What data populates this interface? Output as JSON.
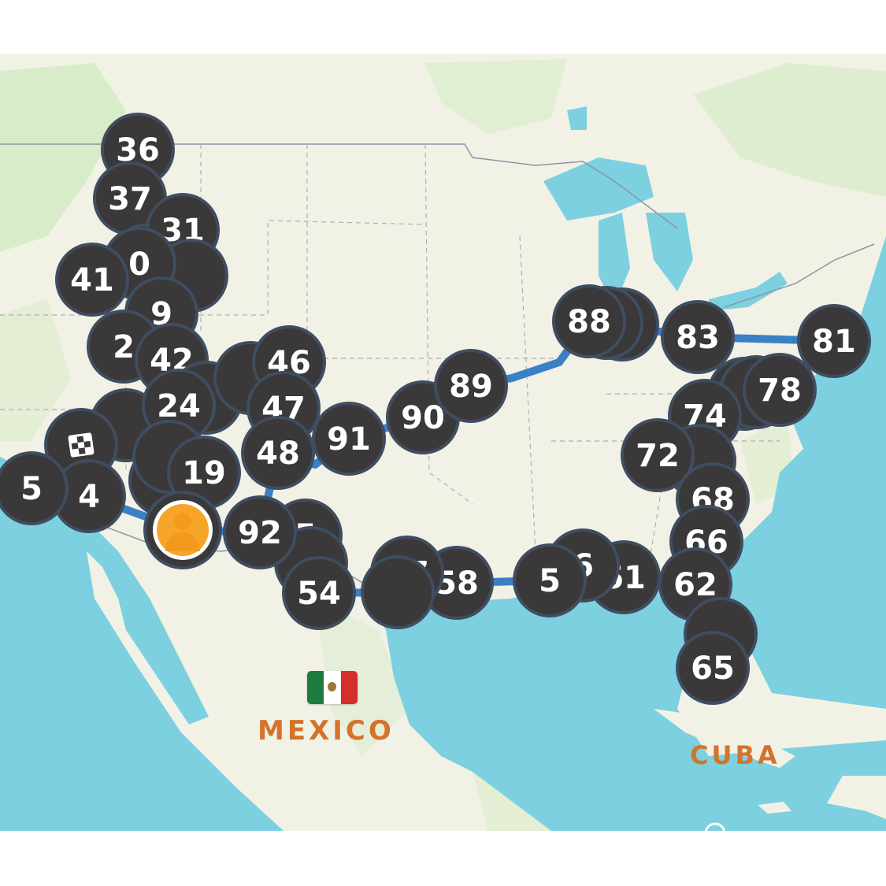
{
  "map": {
    "colors": {
      "water": "#7dd0e0",
      "land": "#f2f1e6",
      "park": "#d8ecc9",
      "route": "#3a80c4",
      "marker_fill": "#3a3839",
      "marker_border": "#3f4d60",
      "marker_text": "#ffffff",
      "avatar": "#f7a528",
      "country_label": "#d4732a"
    },
    "country_labels": [
      "MEXICO",
      "CUBA"
    ],
    "markers": [
      "36",
      "37",
      "",
      "31",
      "",
      "0",
      "41",
      "9",
      "2",
      "42",
      "",
      "",
      "24",
      "",
      "46",
      "47",
      "48",
      "91",
      "90",
      "89",
      "",
      "",
      "88",
      "83",
      "81",
      "",
      "",
      "78",
      "74",
      "",
      "72",
      "68",
      "66",
      "62",
      "",
      "65",
      "61",
      "6",
      "5",
      "58",
      "5",
      "57",
      "",
      "",
      "54",
      "",
      "92",
      "",
      "19",
      "4",
      "5"
    ],
    "start_marker_icon": "checkered-flag-icon",
    "current_location_icon": "user-avatar-icon",
    "locate_control_icon": "locate-ring-icon"
  }
}
